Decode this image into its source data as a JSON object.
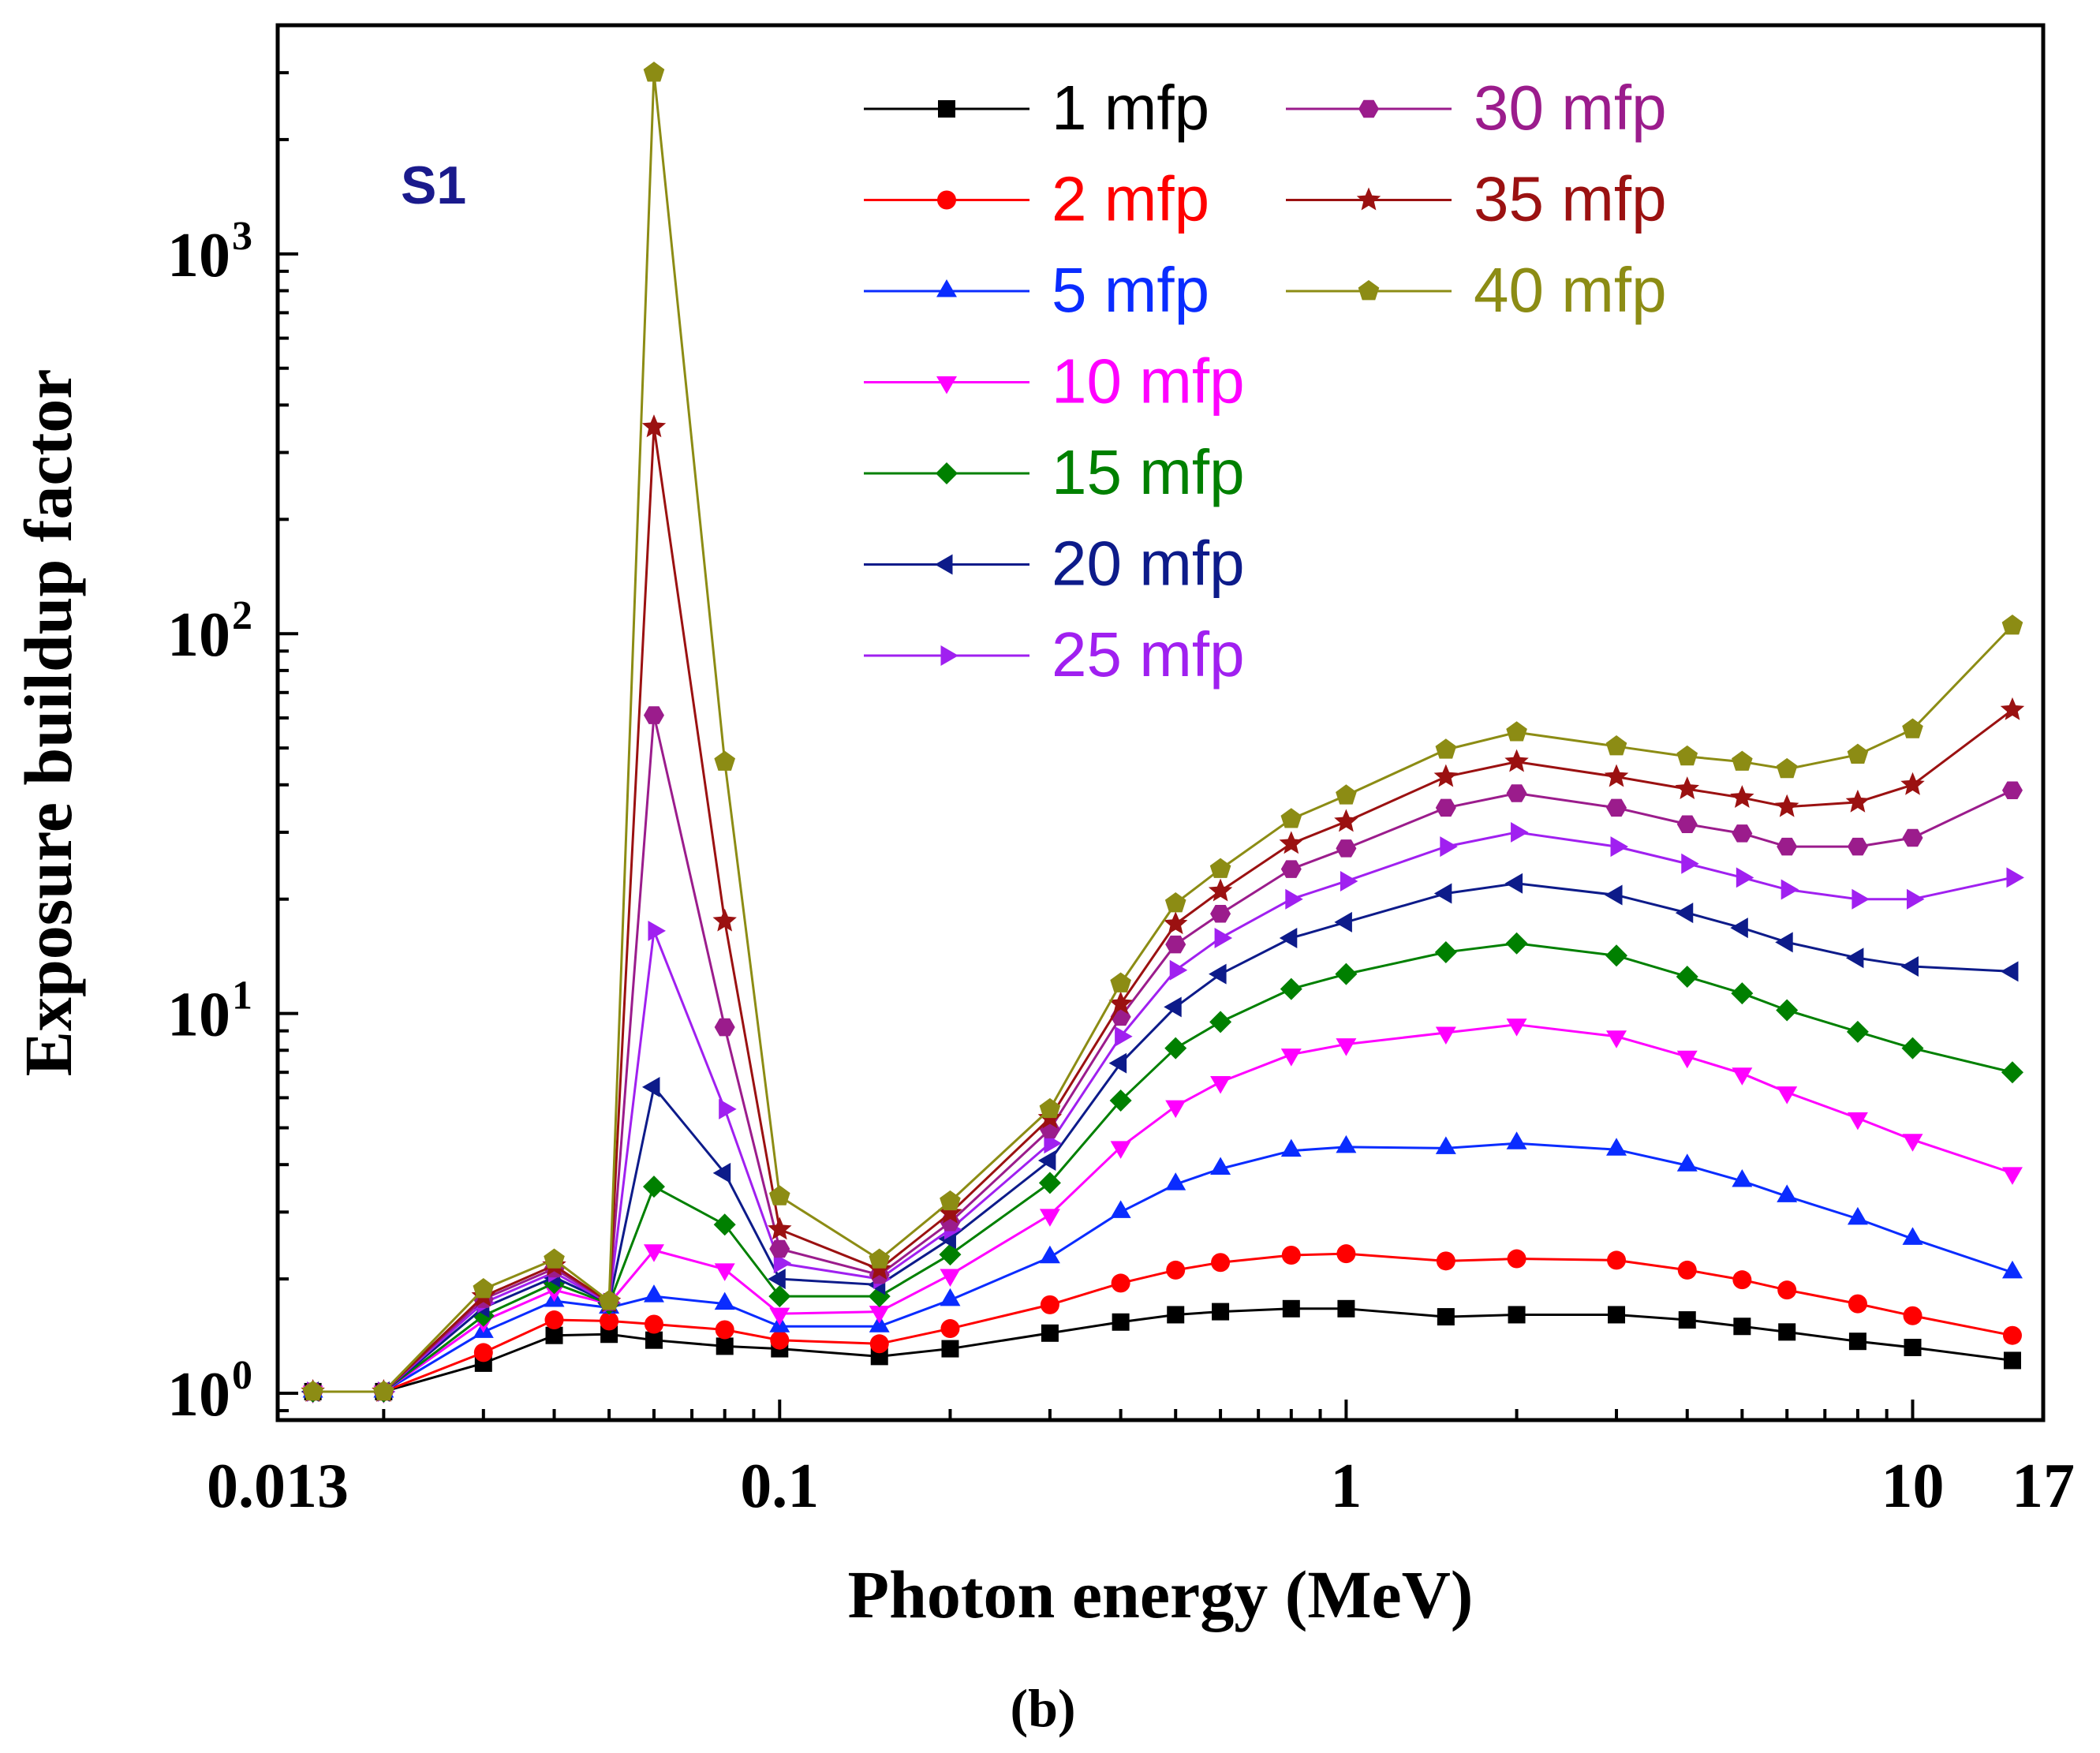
{
  "chart_data": {
    "type": "line",
    "caption": "(b)",
    "annotation": "S1",
    "annotation_color": "#1a1a8c",
    "xlabel": "Photon energy (MeV)",
    "ylabel": "Exposure buildup factor",
    "xscale": "log",
    "yscale": "log",
    "xlim": [
      0.013,
      17
    ],
    "ylim": [
      0.85,
      4000
    ],
    "legend_position": "top-center",
    "x_tick_labels": [
      {
        "value": 0.013,
        "label": "0.013"
      },
      {
        "value": 0.1,
        "label": "0.1"
      },
      {
        "value": 1,
        "label": "1"
      },
      {
        "value": 10,
        "label": "10"
      },
      {
        "value": 17,
        "label": "17"
      }
    ],
    "y_tick_labels": [
      {
        "value": 1,
        "base": "10",
        "exp": "0"
      },
      {
        "value": 10,
        "base": "10",
        "exp": "1"
      },
      {
        "value": 100,
        "base": "10",
        "exp": "2"
      },
      {
        "value": 1000,
        "base": "10",
        "exp": "3"
      }
    ],
    "x": [
      0.015,
      0.02,
      0.03,
      0.04,
      0.05,
      0.06,
      0.08,
      0.1,
      0.15,
      0.2,
      0.3,
      0.4,
      0.5,
      0.6,
      0.8,
      1,
      1.5,
      2,
      3,
      4,
      5,
      6,
      8,
      10,
      15
    ],
    "series": [
      {
        "name": "1 mfp",
        "color": "#000000",
        "marker": "square",
        "values": [
          1.01,
          1.01,
          1.2,
          1.42,
          1.43,
          1.38,
          1.33,
          1.31,
          1.25,
          1.31,
          1.44,
          1.54,
          1.61,
          1.64,
          1.67,
          1.67,
          1.59,
          1.61,
          1.61,
          1.56,
          1.5,
          1.45,
          1.37,
          1.32,
          1.22
        ]
      },
      {
        "name": "2 mfp",
        "color": "#ff0000",
        "marker": "circle",
        "values": [
          1.01,
          1.01,
          1.28,
          1.56,
          1.55,
          1.52,
          1.47,
          1.38,
          1.35,
          1.48,
          1.71,
          1.95,
          2.11,
          2.21,
          2.31,
          2.33,
          2.23,
          2.26,
          2.24,
          2.11,
          1.99,
          1.87,
          1.72,
          1.6,
          1.42
        ]
      },
      {
        "name": "5 mfp",
        "color": "#0a2cff",
        "marker": "triangle-up",
        "values": [
          1.01,
          1.01,
          1.45,
          1.75,
          1.68,
          1.8,
          1.72,
          1.5,
          1.5,
          1.76,
          2.28,
          3.0,
          3.55,
          3.9,
          4.35,
          4.45,
          4.42,
          4.55,
          4.38,
          3.98,
          3.62,
          3.3,
          2.88,
          2.55,
          2.08
        ]
      },
      {
        "name": "10 mfp",
        "color": "#ff00ff",
        "marker": "triangle-down",
        "values": [
          1.01,
          1.01,
          1.55,
          1.87,
          1.72,
          2.38,
          2.12,
          1.62,
          1.64,
          2.05,
          2.95,
          4.45,
          5.7,
          6.6,
          7.8,
          8.3,
          8.9,
          9.35,
          8.7,
          7.7,
          6.95,
          6.2,
          5.3,
          4.65,
          3.8
        ]
      },
      {
        "name": "15 mfp",
        "color": "#008000",
        "marker": "diamond",
        "values": [
          1.01,
          1.01,
          1.6,
          1.95,
          1.72,
          3.5,
          2.78,
          1.8,
          1.8,
          2.32,
          3.58,
          5.9,
          8.1,
          9.5,
          11.6,
          12.7,
          14.5,
          15.3,
          14.2,
          12.5,
          11.3,
          10.2,
          8.95,
          8.1,
          7.0
        ]
      },
      {
        "name": "20 mfp",
        "color": "#0d1b8a",
        "marker": "triangle-left",
        "values": [
          1.01,
          1.01,
          1.68,
          2.02,
          1.73,
          6.4,
          3.8,
          2.0,
          1.93,
          2.55,
          4.1,
          7.4,
          10.4,
          12.7,
          15.8,
          17.4,
          20.7,
          22.0,
          20.5,
          18.4,
          16.8,
          15.4,
          14.0,
          13.3,
          12.9
        ]
      },
      {
        "name": "25 mfp",
        "color": "#a020f0",
        "marker": "triangle-right",
        "values": [
          1.01,
          1.01,
          1.73,
          2.08,
          1.73,
          16.5,
          5.6,
          2.2,
          2.0,
          2.7,
          4.55,
          8.7,
          13.0,
          15.8,
          20.0,
          22.3,
          27.5,
          30.0,
          27.5,
          24.8,
          22.8,
          21.2,
          20.0,
          20.0,
          22.8
        ]
      },
      {
        "name": "30 mfp",
        "color": "#9b1c8c",
        "marker": "hexagon",
        "values": [
          1.01,
          1.01,
          1.77,
          2.13,
          1.74,
          61,
          9.2,
          2.4,
          2.05,
          2.82,
          4.95,
          9.8,
          15.2,
          18.3,
          24.0,
          27.2,
          34.8,
          38.0,
          34.8,
          31.5,
          29.8,
          27.5,
          27.5,
          29.0,
          38.7
        ]
      },
      {
        "name": "35 mfp",
        "color": "#9b1111",
        "marker": "star",
        "values": [
          1.01,
          1.01,
          1.8,
          2.17,
          1.74,
          350,
          17.5,
          2.7,
          2.12,
          2.98,
          5.3,
          10.6,
          17.2,
          21.0,
          28.0,
          32.0,
          42.0,
          46.0,
          42.0,
          39.0,
          37.0,
          35.0,
          36.0,
          40.0,
          63.0
        ]
      },
      {
        "name": "40 mfp",
        "color": "#8c8c14",
        "marker": "pentagon",
        "values": [
          1.01,
          1.01,
          1.88,
          2.25,
          1.75,
          3000,
          46,
          3.3,
          2.25,
          3.2,
          5.6,
          12.0,
          19.5,
          24.0,
          32.5,
          37.5,
          49.5,
          55.0,
          50.5,
          47.5,
          46.0,
          44.0,
          48.0,
          56.0,
          105.0
        ]
      }
    ]
  }
}
